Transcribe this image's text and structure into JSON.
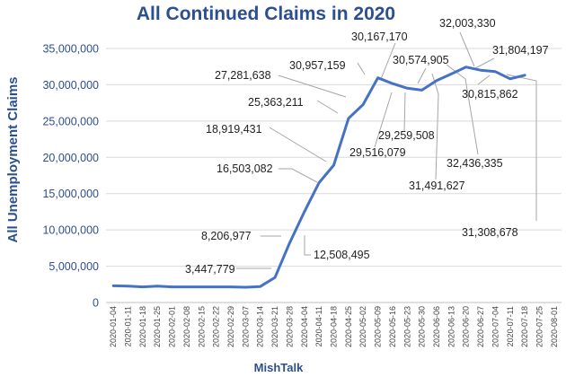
{
  "chart_data": {
    "type": "line",
    "title": "All Continued Claims in 2020",
    "ylabel": "All Unemployment  Claims",
    "xlabel": "MishTalk",
    "ylim": [
      0,
      35000000
    ],
    "yticks": [
      0,
      5000000,
      10000000,
      15000000,
      20000000,
      25000000,
      30000000,
      35000000
    ],
    "ytick_labels": [
      "0",
      "5,000,000",
      "10,000,000",
      "15,000,000",
      "20,000,000",
      "25,000,000",
      "30,000,000",
      "35,000,000"
    ],
    "grid": true,
    "legend": false,
    "colors": {
      "line": "#4472c4",
      "grid": "#d9d9d9",
      "leader": "#a6a6a6",
      "title": "#2b4f8f"
    },
    "x": [
      "2020-01-04",
      "2020-01-11",
      "2020-01-18",
      "2020-01-25",
      "2020-02-01",
      "2020-02-08",
      "2020-02-15",
      "2020-02-22",
      "2020-02-29",
      "2020-03-07",
      "2020-03-14",
      "2020-03-21",
      "2020-03-28",
      "2020-04-04",
      "2020-04-11",
      "2020-04-18",
      "2020-04-25",
      "2020-05-02",
      "2020-05-09",
      "2020-05-16",
      "2020-05-23",
      "2020-05-30",
      "2020-06-06",
      "2020-06-13",
      "2020-06-20",
      "2020-06-27",
      "2020-07-04",
      "2020-07-11",
      "2020-07-18",
      "2020-07-25",
      "2020-08-01"
    ],
    "series": [
      {
        "values": [
          2300000,
          2250000,
          2150000,
          2250000,
          2150000,
          2150000,
          2150000,
          2150000,
          2150000,
          2100000,
          2200000,
          3447779,
          8206977,
          12508495,
          16503082,
          18919431,
          25363211,
          27281638,
          30957159,
          30167170,
          29516079,
          29259508,
          30574905,
          31491627,
          32436335,
          32003330,
          31804197,
          30815862,
          31308678,
          null,
          null
        ]
      }
    ],
    "annotations": [
      {
        "index": 11,
        "text": "3,447,779"
      },
      {
        "index": 12,
        "text": "8,206,977"
      },
      {
        "index": 13,
        "text": "12,508,495"
      },
      {
        "index": 14,
        "text": "16,503,082"
      },
      {
        "index": 15,
        "text": "18,919,431"
      },
      {
        "index": 16,
        "text": "25,363,211"
      },
      {
        "index": 17,
        "text": "27,281,638"
      },
      {
        "index": 18,
        "text": "30,957,159"
      },
      {
        "index": 19,
        "text": "30,167,170"
      },
      {
        "index": 20,
        "text": "29,516,079"
      },
      {
        "index": 21,
        "text": "29,259,508"
      },
      {
        "index": 22,
        "text": "30,574,905"
      },
      {
        "index": 23,
        "text": "31,491,627"
      },
      {
        "index": 24,
        "text": "32,436,335"
      },
      {
        "index": 25,
        "text": "32,003,330"
      },
      {
        "index": 26,
        "text": "31,804,197"
      },
      {
        "index": 27,
        "text": "30,815,862"
      },
      {
        "index": 28,
        "text": "31,308,678"
      }
    ]
  }
}
